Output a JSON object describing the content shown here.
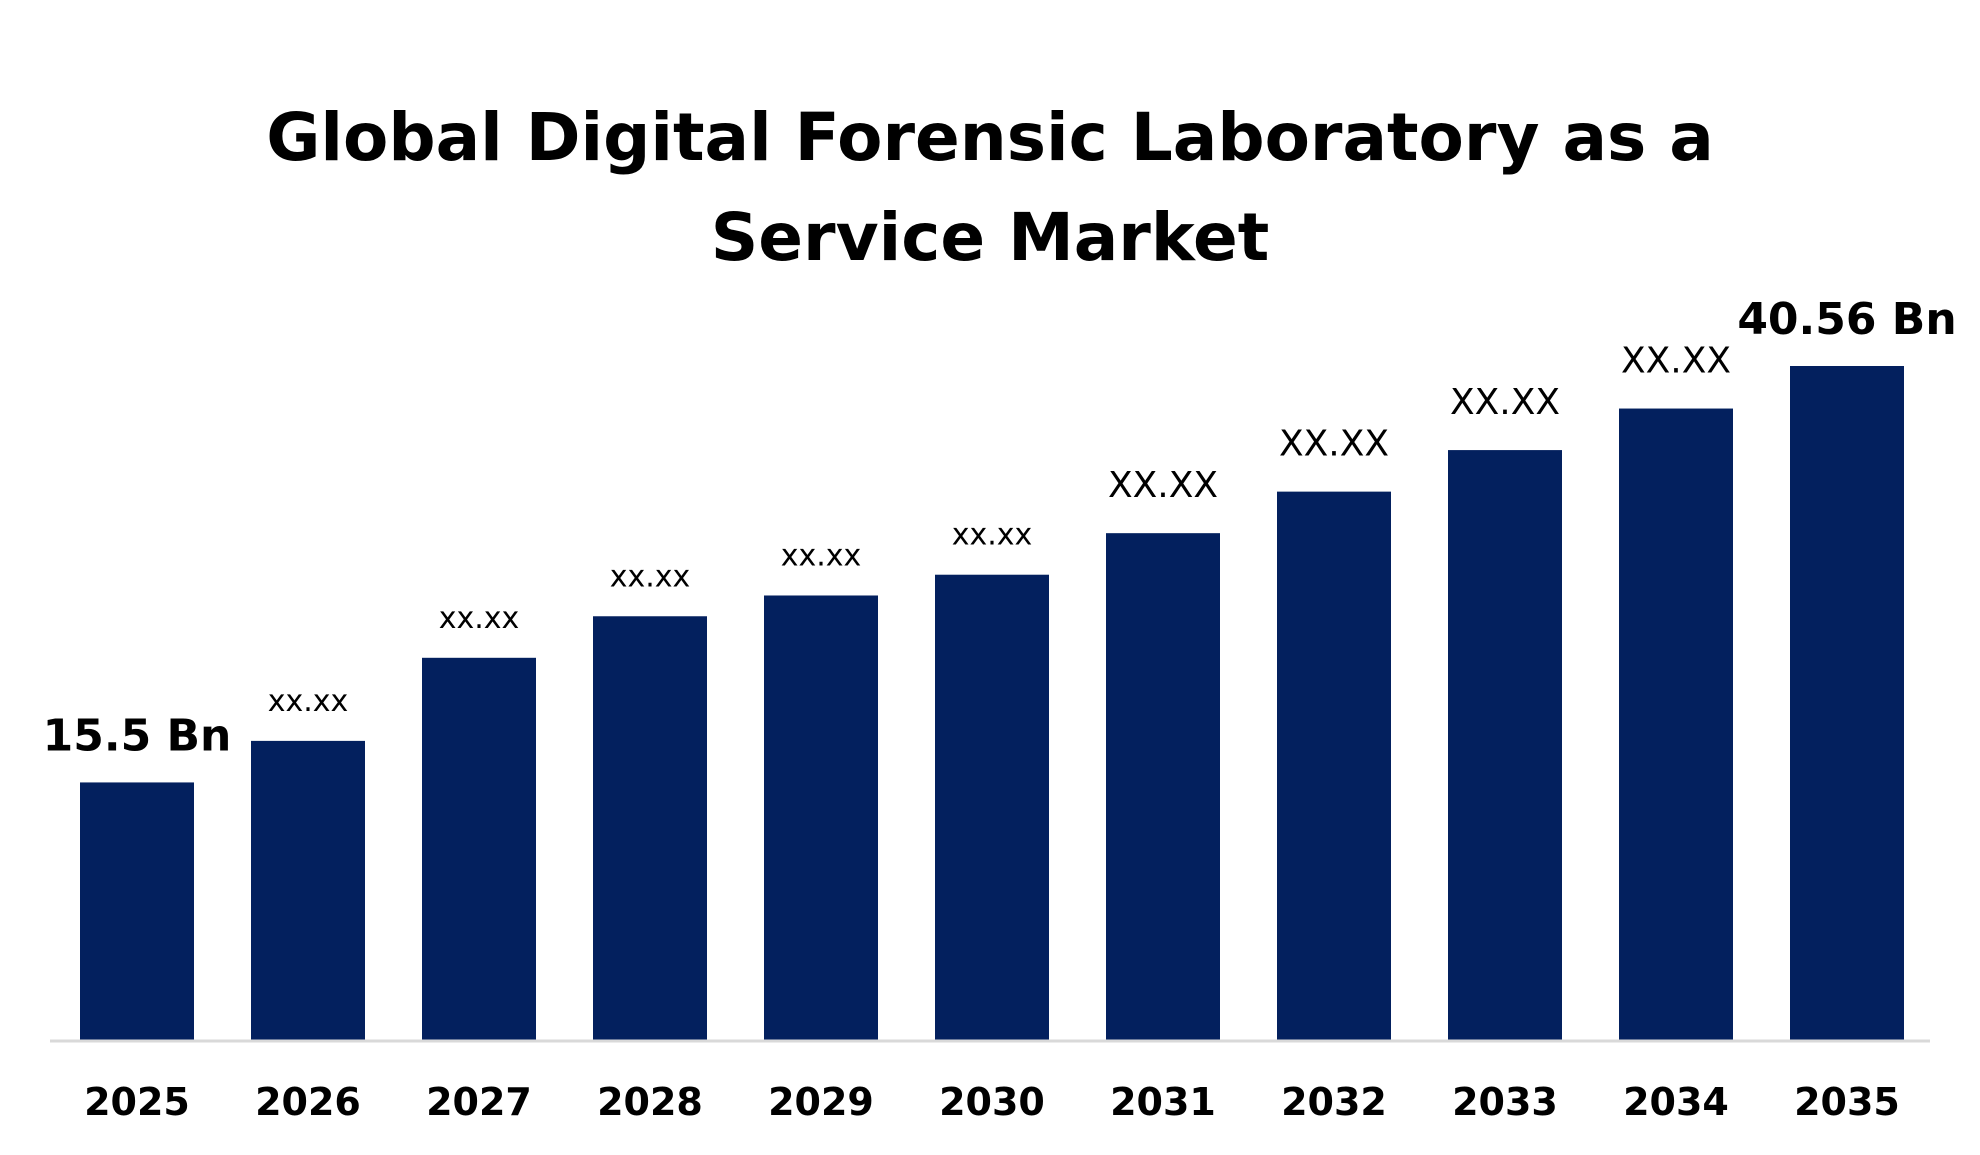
{
  "chart_data": {
    "type": "bar",
    "title_lines": [
      "Global Digital Forensic Laboratory as a",
      "Service Market"
    ],
    "categories": [
      "2025",
      "2026",
      "2027",
      "2028",
      "2029",
      "2030",
      "2031",
      "2032",
      "2033",
      "2034",
      "2035"
    ],
    "values": [
      15.5,
      18.0,
      23.0,
      25.5,
      26.75,
      28.0,
      30.5,
      33.0,
      35.5,
      38.0,
      40.56
    ],
    "data_labels": [
      "15.5 Bn",
      "xx.xx",
      "xx.xx",
      "xx.xx",
      "xx.xx",
      "xx.xx",
      "XX.XX",
      "XX.XX",
      "XX.XX",
      "XX.XX",
      "40.56 Bn"
    ],
    "xlabel": "",
    "ylabel": "",
    "ylim": [
      0,
      45
    ],
    "grid": false,
    "legend": "none",
    "colors": {
      "bar": "#03205e",
      "axis": "#d9d9d9",
      "text": "#000000"
    }
  }
}
